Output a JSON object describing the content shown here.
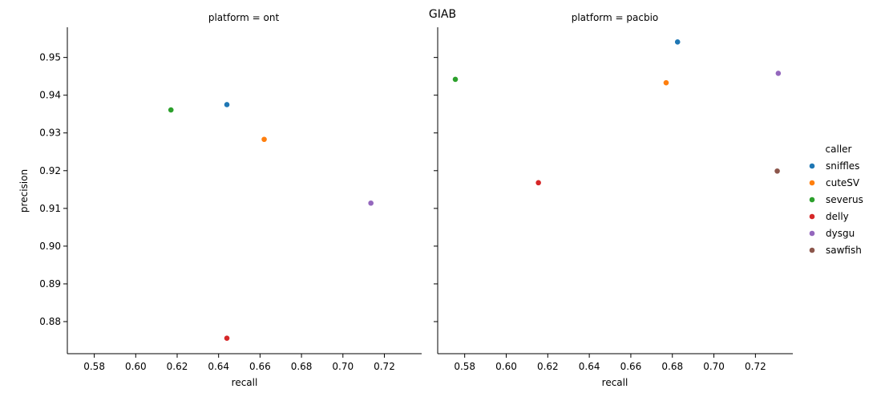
{
  "chart_data": {
    "type": "scatter",
    "suptitle": "GIAB",
    "xlabel": "recall",
    "ylabel": "precision",
    "xlim": [
      0.567,
      0.738
    ],
    "ylim": [
      0.8715,
      0.958
    ],
    "xticks": [
      0.58,
      0.6,
      0.62,
      0.64,
      0.66,
      0.68,
      0.7,
      0.72
    ],
    "xtick_labels": [
      "0.58",
      "0.60",
      "0.62",
      "0.64",
      "0.66",
      "0.68",
      "0.70",
      "0.72"
    ],
    "yticks": [
      0.88,
      0.89,
      0.9,
      0.91,
      0.92,
      0.93,
      0.94,
      0.95
    ],
    "ytick_labels": [
      "0.88",
      "0.89",
      "0.90",
      "0.91",
      "0.92",
      "0.93",
      "0.94",
      "0.95"
    ],
    "legend": {
      "title": "caller",
      "position": "right",
      "entries": [
        {
          "name": "sniffles",
          "color": "#1f77b4"
        },
        {
          "name": "cuteSV",
          "color": "#ff7f0e"
        },
        {
          "name": "severus",
          "color": "#2ca02c"
        },
        {
          "name": "delly",
          "color": "#d62728"
        },
        {
          "name": "dysgu",
          "color": "#9467bd"
        },
        {
          "name": "sawfish",
          "color": "#8c564b"
        }
      ]
    },
    "facets": [
      {
        "title": "platform = ont",
        "points": [
          {
            "caller": "sniffles",
            "recall": 0.644,
            "precision": 0.9375
          },
          {
            "caller": "cuteSV",
            "recall": 0.662,
            "precision": 0.9283
          },
          {
            "caller": "severus",
            "recall": 0.617,
            "precision": 0.9361
          },
          {
            "caller": "delly",
            "recall": 0.644,
            "precision": 0.8756
          },
          {
            "caller": "dysgu",
            "recall": 0.7135,
            "precision": 0.9114
          }
        ]
      },
      {
        "title": "platform = pacbio",
        "points": [
          {
            "caller": "sniffles",
            "recall": 0.6825,
            "precision": 0.9541
          },
          {
            "caller": "cuteSV",
            "recall": 0.677,
            "precision": 0.9433
          },
          {
            "caller": "severus",
            "recall": 0.5755,
            "precision": 0.9442
          },
          {
            "caller": "delly",
            "recall": 0.6155,
            "precision": 0.9168
          },
          {
            "caller": "dysgu",
            "recall": 0.731,
            "precision": 0.9458
          },
          {
            "caller": "sawfish",
            "recall": 0.7305,
            "precision": 0.9199
          }
        ]
      }
    ]
  }
}
